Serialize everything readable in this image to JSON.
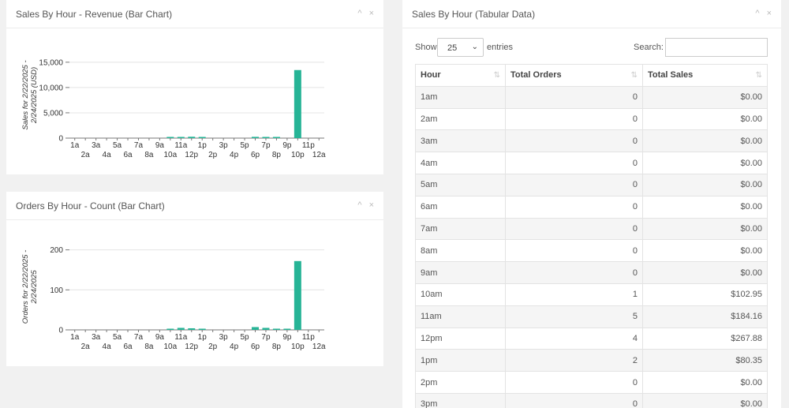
{
  "colors": {
    "bar": "#26b496",
    "axis": "#777",
    "grid": "#e4e4e4"
  },
  "icons": {
    "collapse": "chevron-up-icon",
    "close": "close-icon"
  },
  "panels": {
    "sales_chart": {
      "title": "Sales By Hour - Revenue (Bar Chart)",
      "collapse_glyph": "^",
      "close_glyph": "×"
    },
    "orders_chart": {
      "title": "Orders By Hour - Count (Bar Chart)",
      "collapse_glyph": "^",
      "close_glyph": "×"
    },
    "table": {
      "title": "Sales By Hour (Tabular Data)",
      "collapse_glyph": "^",
      "close_glyph": "×"
    }
  },
  "table_controls": {
    "show_label": "Show",
    "page_size": "25",
    "entries_label": "entries",
    "search_label": "Search:",
    "search_value": ""
  },
  "table": {
    "columns": [
      "Hour",
      "Total Orders",
      "Total Sales"
    ],
    "rows": [
      [
        "1am",
        "0",
        "$0.00"
      ],
      [
        "2am",
        "0",
        "$0.00"
      ],
      [
        "3am",
        "0",
        "$0.00"
      ],
      [
        "4am",
        "0",
        "$0.00"
      ],
      [
        "5am",
        "0",
        "$0.00"
      ],
      [
        "6am",
        "0",
        "$0.00"
      ],
      [
        "7am",
        "0",
        "$0.00"
      ],
      [
        "8am",
        "0",
        "$0.00"
      ],
      [
        "9am",
        "0",
        "$0.00"
      ],
      [
        "10am",
        "1",
        "$102.95"
      ],
      [
        "11am",
        "5",
        "$184.16"
      ],
      [
        "12pm",
        "4",
        "$267.88"
      ],
      [
        "1pm",
        "2",
        "$80.35"
      ],
      [
        "2pm",
        "0",
        "$0.00"
      ],
      [
        "3pm",
        "0",
        "$0.00"
      ]
    ]
  },
  "chart_data": [
    {
      "type": "bar",
      "categories": [
        "1a",
        "2a",
        "3a",
        "4a",
        "5a",
        "6a",
        "7a",
        "8a",
        "9a",
        "10a",
        "11a",
        "12p",
        "1p",
        "2p",
        "3p",
        "4p",
        "5p",
        "6p",
        "7p",
        "8p",
        "9p",
        "10p",
        "11p",
        "12a"
      ],
      "values": [
        0,
        0,
        0,
        0,
        0,
        0,
        0,
        0,
        0,
        102.95,
        184.16,
        267.88,
        80.35,
        0,
        0,
        0,
        0,
        250,
        200,
        30,
        0,
        13450,
        0,
        0
      ],
      "ylabel": "Sales for 2/22/2025 - 2/24/2025 (USD)",
      "ylim": [
        0,
        17000
      ],
      "yticks": [
        0,
        5000,
        10000,
        15000
      ],
      "ytick_labels": [
        "0",
        "5,000",
        "10,000",
        "15,000"
      ],
      "grid": true
    },
    {
      "type": "bar",
      "categories": [
        "1a",
        "2a",
        "3a",
        "4a",
        "5a",
        "6a",
        "7a",
        "8a",
        "9a",
        "10a",
        "11a",
        "12p",
        "1p",
        "2p",
        "3p",
        "4p",
        "5p",
        "6p",
        "7p",
        "8p",
        "9p",
        "10p",
        "11p",
        "12a"
      ],
      "values": [
        0,
        0,
        0,
        0,
        0,
        0,
        0,
        0,
        0,
        1,
        5,
        4,
        2,
        0,
        0,
        0,
        0,
        7,
        5,
        3,
        1,
        172,
        0,
        0
      ],
      "ylabel": "Orders for 2/22/2025 - 2/24/2025",
      "ylim": [
        0,
        215
      ],
      "yticks": [
        0,
        100,
        200
      ],
      "ytick_labels": [
        "0",
        "100",
        "200"
      ],
      "grid": true
    }
  ]
}
